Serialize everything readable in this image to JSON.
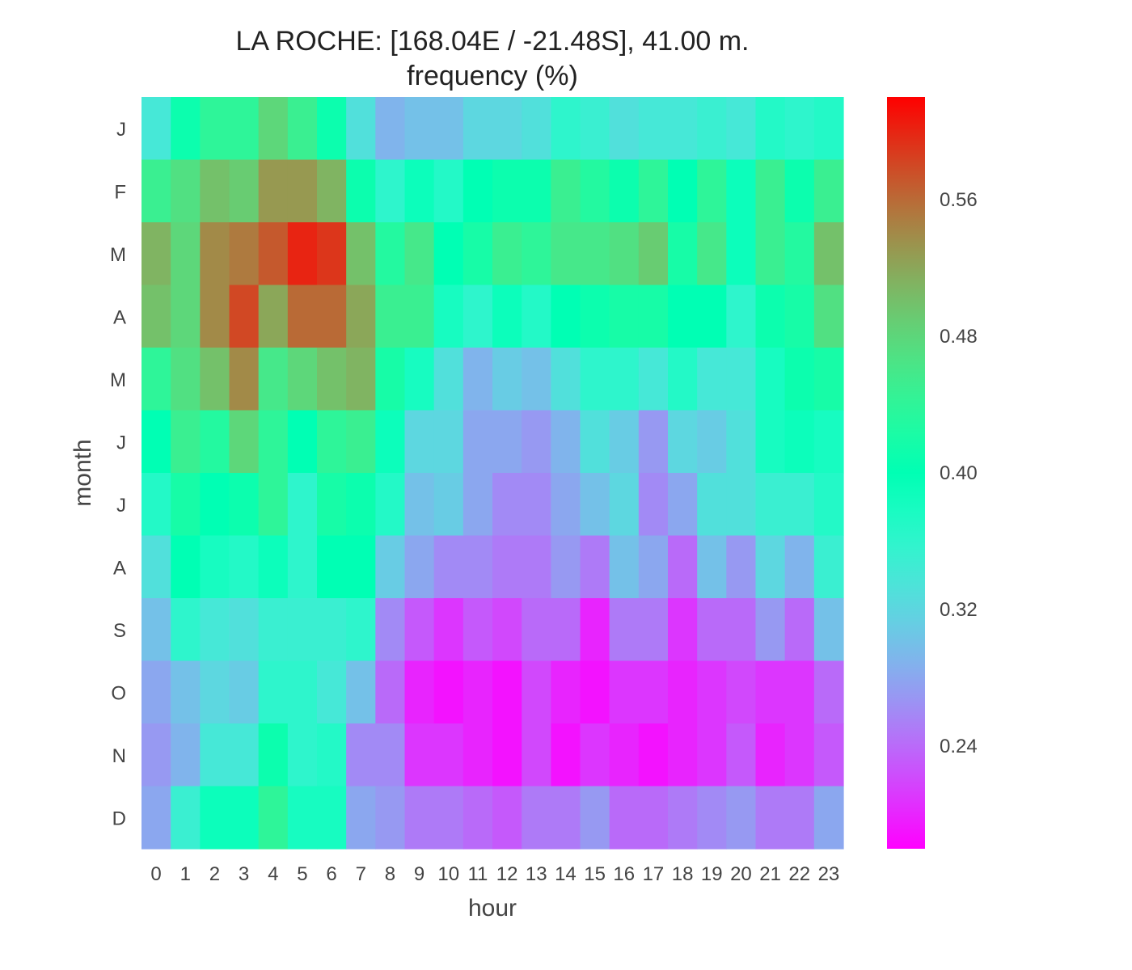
{
  "chart_data": {
    "type": "heatmap",
    "title": "LA ROCHE: [168.04E / -21.48S], 41.00 m.",
    "subtitle": "frequency (%)",
    "xlabel": "hour",
    "ylabel": "month",
    "x_categories": [
      "0",
      "1",
      "2",
      "3",
      "4",
      "5",
      "6",
      "7",
      "8",
      "9",
      "10",
      "11",
      "12",
      "13",
      "14",
      "15",
      "16",
      "17",
      "18",
      "19",
      "20",
      "21",
      "22",
      "23"
    ],
    "y_categories": [
      "J",
      "F",
      "M",
      "A",
      "M",
      "J",
      "J",
      "A",
      "S",
      "O",
      "N",
      "D"
    ],
    "values": [
      [
        0.34,
        0.41,
        0.44,
        0.44,
        0.48,
        0.45,
        0.41,
        0.33,
        0.29,
        0.3,
        0.3,
        0.32,
        0.32,
        0.33,
        0.36,
        0.35,
        0.33,
        0.34,
        0.34,
        0.35,
        0.34,
        0.37,
        0.36,
        0.37
      ],
      [
        0.45,
        0.47,
        0.5,
        0.49,
        0.53,
        0.53,
        0.51,
        0.41,
        0.36,
        0.39,
        0.37,
        0.4,
        0.41,
        0.41,
        0.45,
        0.43,
        0.41,
        0.44,
        0.4,
        0.44,
        0.39,
        0.45,
        0.41,
        0.45
      ],
      [
        0.51,
        0.48,
        0.54,
        0.55,
        0.57,
        0.6,
        0.59,
        0.5,
        0.43,
        0.46,
        0.4,
        0.42,
        0.45,
        0.44,
        0.46,
        0.46,
        0.47,
        0.49,
        0.42,
        0.46,
        0.39,
        0.45,
        0.43,
        0.5
      ],
      [
        0.5,
        0.48,
        0.54,
        0.58,
        0.52,
        0.56,
        0.56,
        0.52,
        0.45,
        0.45,
        0.38,
        0.36,
        0.39,
        0.37,
        0.4,
        0.41,
        0.42,
        0.42,
        0.4,
        0.4,
        0.36,
        0.41,
        0.42,
        0.47
      ],
      [
        0.44,
        0.47,
        0.5,
        0.54,
        0.46,
        0.48,
        0.5,
        0.51,
        0.42,
        0.38,
        0.33,
        0.29,
        0.31,
        0.3,
        0.33,
        0.36,
        0.36,
        0.34,
        0.37,
        0.34,
        0.34,
        0.38,
        0.41,
        0.42
      ],
      [
        0.4,
        0.45,
        0.43,
        0.48,
        0.44,
        0.4,
        0.44,
        0.45,
        0.39,
        0.32,
        0.32,
        0.28,
        0.28,
        0.27,
        0.29,
        0.33,
        0.31,
        0.27,
        0.32,
        0.31,
        0.33,
        0.38,
        0.39,
        0.38
      ],
      [
        0.37,
        0.42,
        0.4,
        0.41,
        0.44,
        0.36,
        0.42,
        0.41,
        0.37,
        0.3,
        0.31,
        0.28,
        0.26,
        0.26,
        0.28,
        0.3,
        0.32,
        0.26,
        0.28,
        0.33,
        0.33,
        0.35,
        0.35,
        0.37
      ],
      [
        0.33,
        0.4,
        0.38,
        0.37,
        0.39,
        0.36,
        0.4,
        0.4,
        0.31,
        0.28,
        0.26,
        0.26,
        0.25,
        0.25,
        0.27,
        0.25,
        0.3,
        0.28,
        0.24,
        0.3,
        0.27,
        0.32,
        0.29,
        0.35
      ],
      [
        0.3,
        0.36,
        0.34,
        0.33,
        0.35,
        0.35,
        0.35,
        0.36,
        0.26,
        0.23,
        0.21,
        0.23,
        0.22,
        0.24,
        0.24,
        0.2,
        0.25,
        0.25,
        0.21,
        0.24,
        0.24,
        0.27,
        0.24,
        0.3
      ],
      [
        0.28,
        0.3,
        0.32,
        0.31,
        0.36,
        0.36,
        0.34,
        0.3,
        0.24,
        0.2,
        0.19,
        0.2,
        0.19,
        0.22,
        0.2,
        0.19,
        0.21,
        0.21,
        0.2,
        0.21,
        0.22,
        0.21,
        0.21,
        0.24
      ],
      [
        0.27,
        0.29,
        0.34,
        0.34,
        0.41,
        0.36,
        0.37,
        0.26,
        0.26,
        0.21,
        0.21,
        0.2,
        0.19,
        0.22,
        0.19,
        0.21,
        0.2,
        0.19,
        0.2,
        0.21,
        0.23,
        0.2,
        0.21,
        0.23
      ],
      [
        0.28,
        0.35,
        0.39,
        0.39,
        0.44,
        0.38,
        0.38,
        0.28,
        0.27,
        0.25,
        0.25,
        0.24,
        0.23,
        0.25,
        0.25,
        0.27,
        0.24,
        0.24,
        0.25,
        0.26,
        0.27,
        0.25,
        0.25,
        0.28
      ]
    ],
    "colorbar": {
      "colormap": "rainbow",
      "range": [
        0.18,
        0.62
      ],
      "ticks": [
        0.24,
        0.32,
        0.4,
        0.48,
        0.56
      ],
      "tick_labels": [
        "0.24",
        "0.32",
        "0.40",
        "0.48",
        "0.56"
      ]
    },
    "grid": false,
    "legend": "colorbar-right"
  }
}
